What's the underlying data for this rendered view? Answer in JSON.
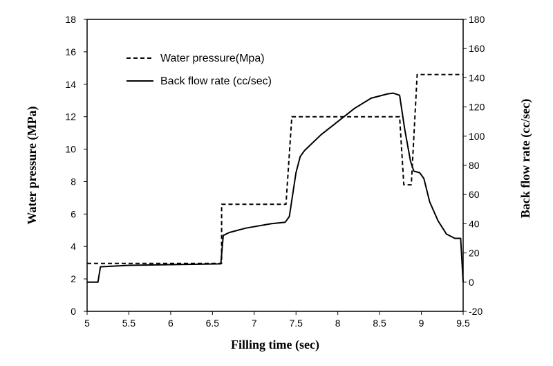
{
  "chart_data": {
    "type": "line",
    "xlabel": "Filling time (sec)",
    "ylabel": "Water pressure (MPa)",
    "y2label": "Back flow rate (cc/sec)",
    "xlim": [
      5,
      9.5
    ],
    "ylim": [
      0,
      18
    ],
    "y2lim": [
      -20,
      180
    ],
    "x_ticks": [
      "5",
      "5.5",
      "6",
      "6.5",
      "7",
      "7.5",
      "8",
      "8.5",
      "9",
      "9.5"
    ],
    "y_ticks": [
      "0",
      "2",
      "4",
      "6",
      "8",
      "10",
      "12",
      "14",
      "16",
      "18"
    ],
    "y2_ticks": [
      "-20",
      "0",
      "20",
      "40",
      "60",
      "80",
      "100",
      "120",
      "140",
      "160",
      "180"
    ],
    "legend_position": "top-left",
    "grid": false,
    "series": [
      {
        "name": "Water pressure(Mpa)",
        "axis": "left",
        "style": "dashed",
        "color": "#000000",
        "points": [
          [
            5.0,
            2.95
          ],
          [
            6.61,
            2.95
          ],
          [
            6.61,
            6.6
          ],
          [
            7.38,
            6.6
          ],
          [
            7.45,
            12.0
          ],
          [
            8.74,
            12.0
          ],
          [
            8.79,
            7.8
          ],
          [
            8.88,
            7.8
          ],
          [
            8.95,
            14.6
          ],
          [
            9.5,
            14.6
          ]
        ]
      },
      {
        "name": "Back flow rate (cc/sec)",
        "axis": "right",
        "style": "solid",
        "color": "#000000",
        "points": [
          [
            5.0,
            0
          ],
          [
            5.13,
            0
          ],
          [
            5.16,
            10.5
          ],
          [
            5.5,
            11.5
          ],
          [
            6.0,
            12
          ],
          [
            6.6,
            12.5
          ],
          [
            6.63,
            32
          ],
          [
            6.7,
            34
          ],
          [
            6.9,
            37
          ],
          [
            7.2,
            40
          ],
          [
            7.37,
            41
          ],
          [
            7.42,
            45
          ],
          [
            7.5,
            75
          ],
          [
            7.55,
            86
          ],
          [
            7.6,
            90
          ],
          [
            7.8,
            101
          ],
          [
            8.0,
            110
          ],
          [
            8.2,
            119
          ],
          [
            8.4,
            126
          ],
          [
            8.6,
            129
          ],
          [
            8.66,
            129.5
          ],
          [
            8.74,
            128
          ],
          [
            8.8,
            105
          ],
          [
            8.87,
            83
          ],
          [
            8.91,
            76
          ],
          [
            8.98,
            75
          ],
          [
            9.03,
            71
          ],
          [
            9.1,
            55
          ],
          [
            9.2,
            42
          ],
          [
            9.3,
            33
          ],
          [
            9.4,
            30
          ],
          [
            9.47,
            30
          ],
          [
            9.5,
            0
          ]
        ]
      }
    ]
  }
}
